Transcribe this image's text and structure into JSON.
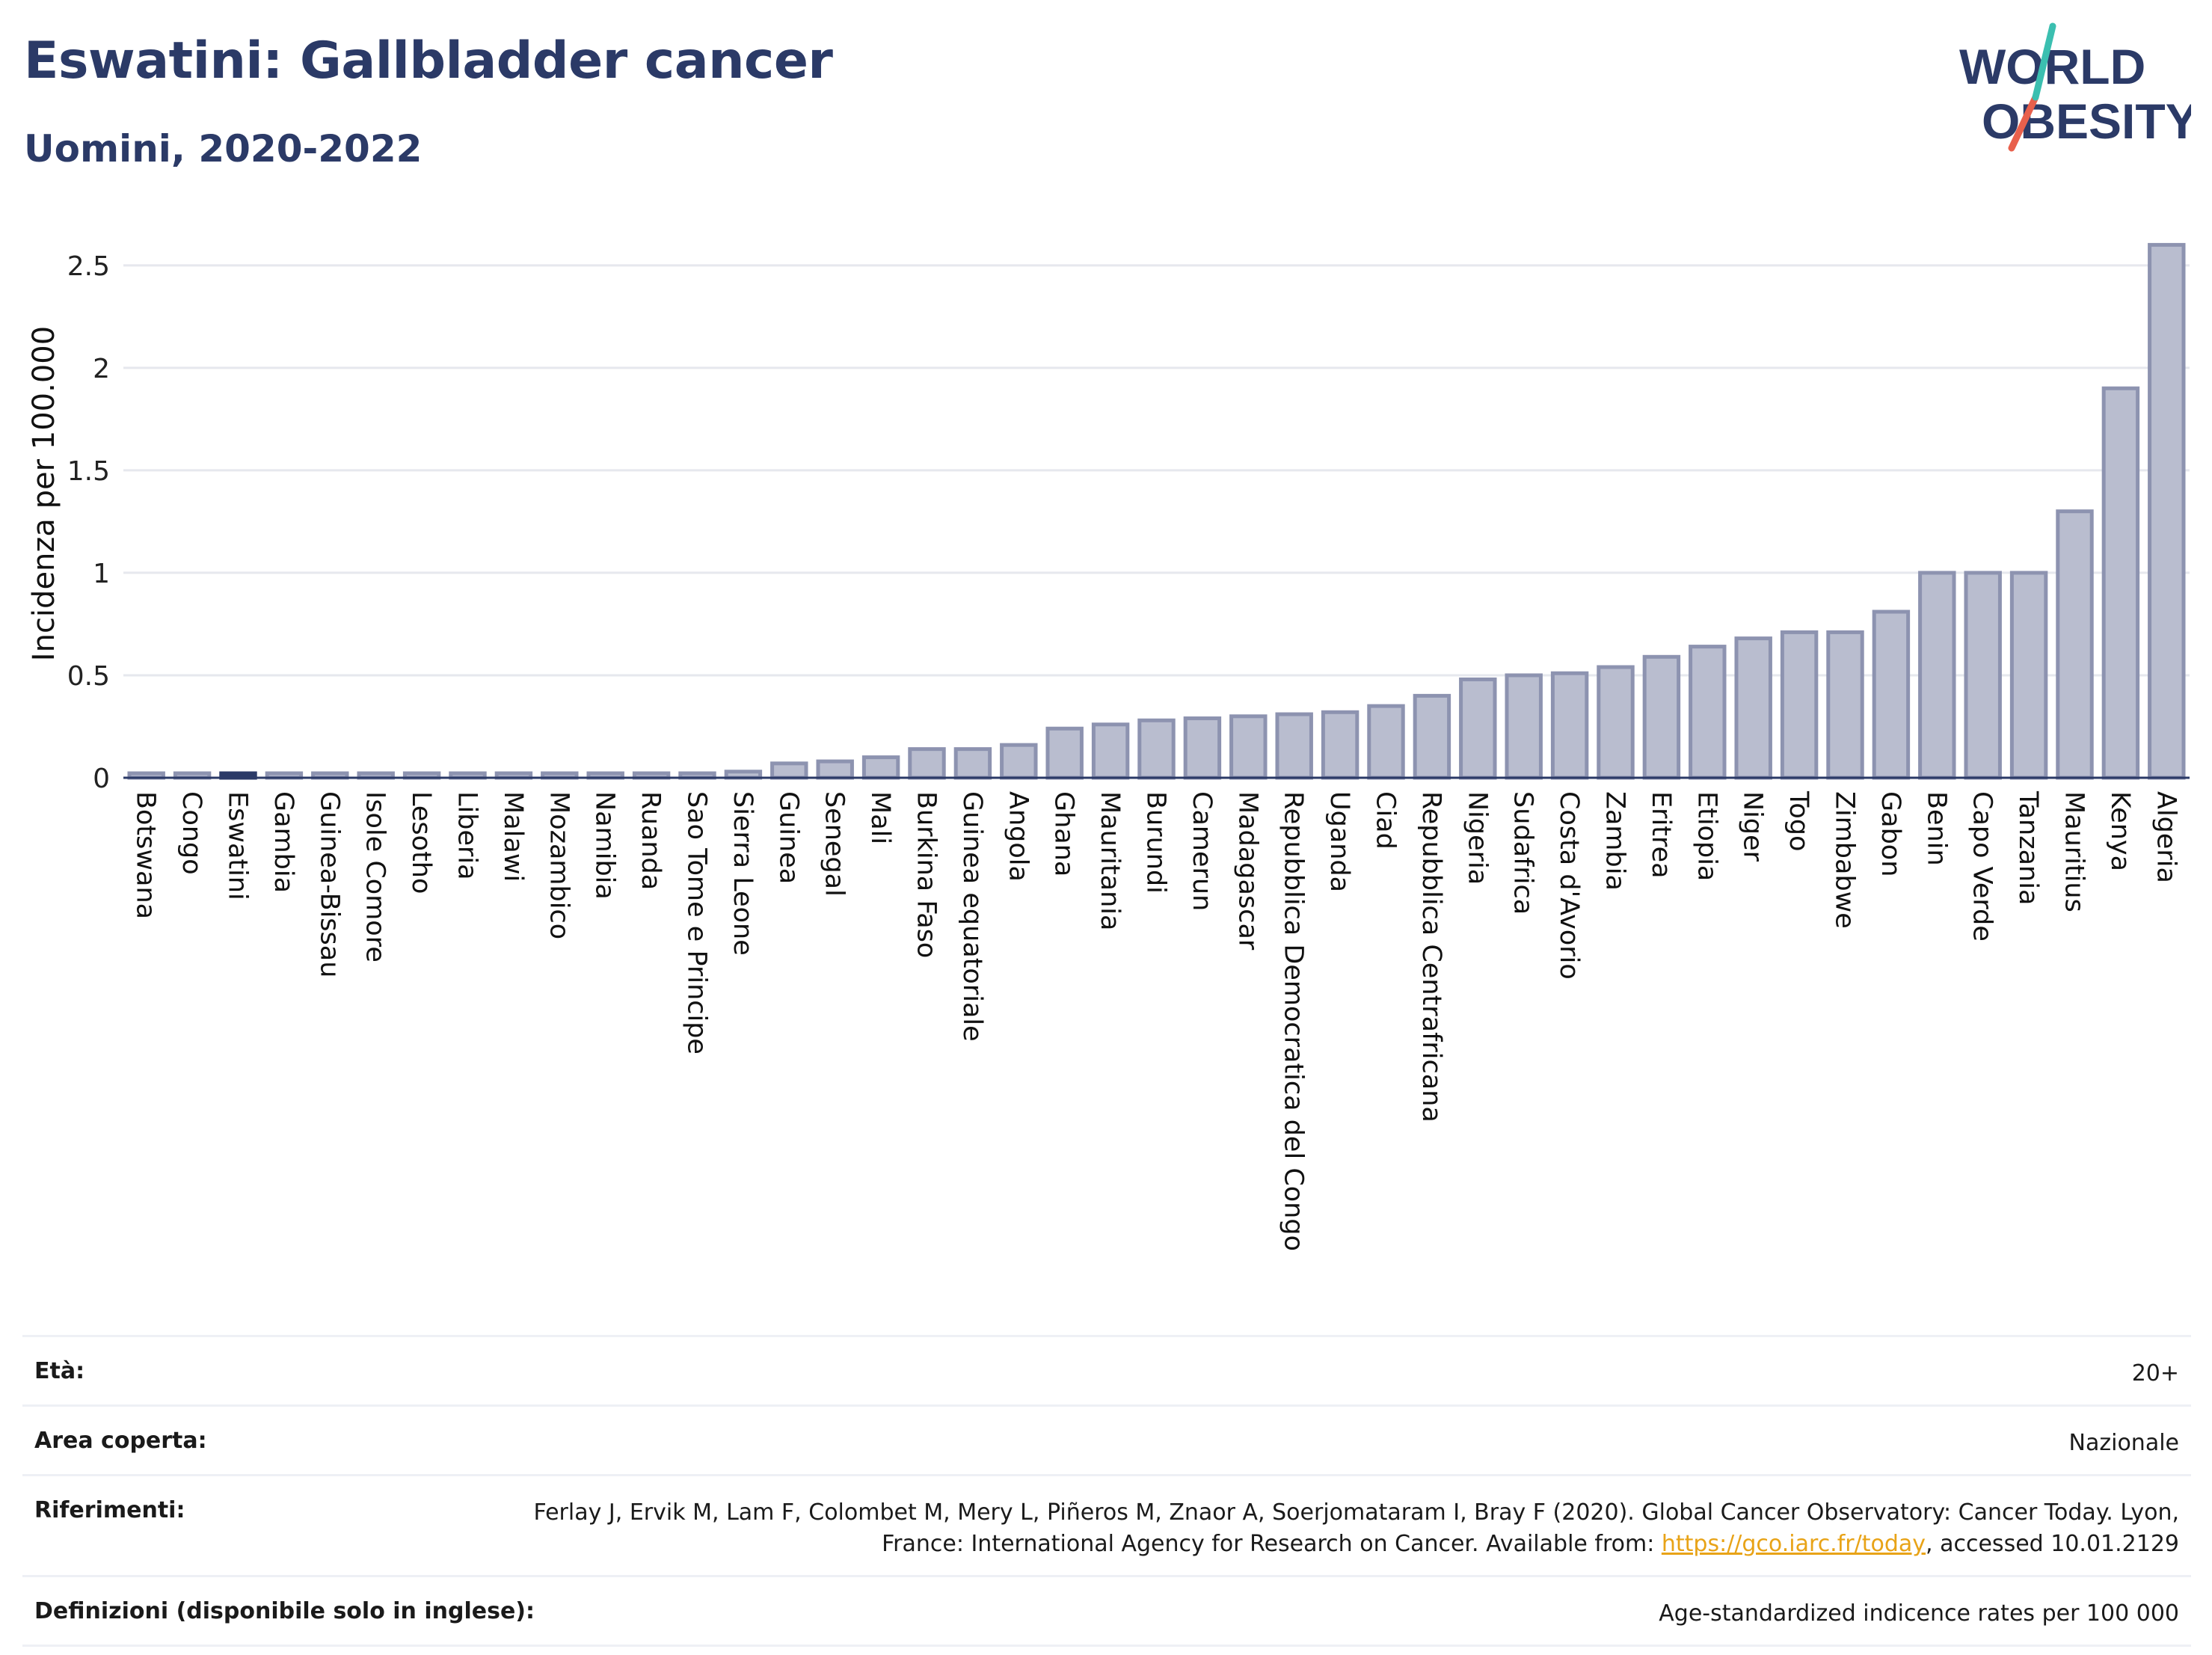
{
  "header": {
    "title": "Eswatini: Gallbladder cancer",
    "subtitle": "Uomini, 2020-2022"
  },
  "logo": {
    "line1": "WORLD",
    "line2": "OBESITY",
    "accent_teal": "#3bbfb0",
    "accent_red": "#e8604c",
    "text_color": "#2b3a67"
  },
  "colors": {
    "bar_fill": "#b9bdcf",
    "bar_stroke": "#8d93b0",
    "highlight_fill": "#2b3a67",
    "grid": "#e6e8ee",
    "axis": "#2b3a67"
  },
  "chart_data": {
    "type": "bar",
    "title": "Eswatini: Gallbladder cancer",
    "subtitle": "Uomini, 2020-2022",
    "ylabel": "Incidenza per 100.000",
    "xlabel": "",
    "ylim": [
      0,
      2.7
    ],
    "yticks": [
      0,
      0.5,
      1,
      1.5,
      2,
      2.5
    ],
    "ytick_labels": [
      "0",
      "0.5",
      "1",
      "1.5",
      "2",
      "2.5"
    ],
    "grid": true,
    "highlight": "Eswatini",
    "categories": [
      "Botswana",
      "Congo",
      "Eswatini",
      "Gambia",
      "Guinea-Bissau",
      "Isole Comore",
      "Lesotho",
      "Liberia",
      "Malawi",
      "Mozambico",
      "Namibia",
      "Ruanda",
      "Sao Tome e Principe",
      "Sierra Leone",
      "Guinea",
      "Senegal",
      "Mali",
      "Burkina Faso",
      "Guinea equatoriale",
      "Angola",
      "Ghana",
      "Mauritania",
      "Burundi",
      "Camerun",
      "Madagascar",
      "Repubblica Democratica del Congo",
      "Uganda",
      "Ciad",
      "Repubblica Centrafricana",
      "Nigeria",
      "Sudafrica",
      "Costa d'Avorio",
      "Zambia",
      "Eritrea",
      "Etiopia",
      "Niger",
      "Togo",
      "Zimbabwe",
      "Gabon",
      "Benin",
      "Capo Verde",
      "Tanzania",
      "Mauritius",
      "Kenya",
      "Algeria"
    ],
    "values": [
      0.01,
      0.01,
      0.01,
      0.01,
      0.01,
      0.01,
      0.01,
      0.01,
      0.01,
      0.01,
      0.01,
      0.01,
      0.01,
      0.03,
      0.07,
      0.08,
      0.1,
      0.14,
      0.14,
      0.16,
      0.24,
      0.26,
      0.28,
      0.29,
      0.3,
      0.31,
      0.32,
      0.35,
      0.4,
      0.48,
      0.5,
      0.51,
      0.54,
      0.59,
      0.64,
      0.68,
      0.71,
      0.71,
      0.81,
      1.0,
      1.0,
      1.0,
      1.3,
      1.9,
      2.6
    ]
  },
  "info": {
    "age_label": "Età:",
    "age_value": "20+",
    "area_label": "Area coperta:",
    "area_value": "Nazionale",
    "refs_label": "Riferimenti:",
    "refs_text_1": "Ferlay J, Ervik M, Lam F, Colombet M, Mery L, Piñeros M, Znaor A, Soerjomataram I, Bray F (2020). Global Cancer Observatory: Cancer Today. Lyon, France: International Agency for Research on Cancer. Available from: ",
    "refs_link": "https://gco.iarc.fr/today",
    "refs_text_2": ", accessed 10.01.2129",
    "defs_label": "Definizioni (disponibile solo in inglese):",
    "defs_value": "Age-standardized indicence rates per 100 000"
  }
}
